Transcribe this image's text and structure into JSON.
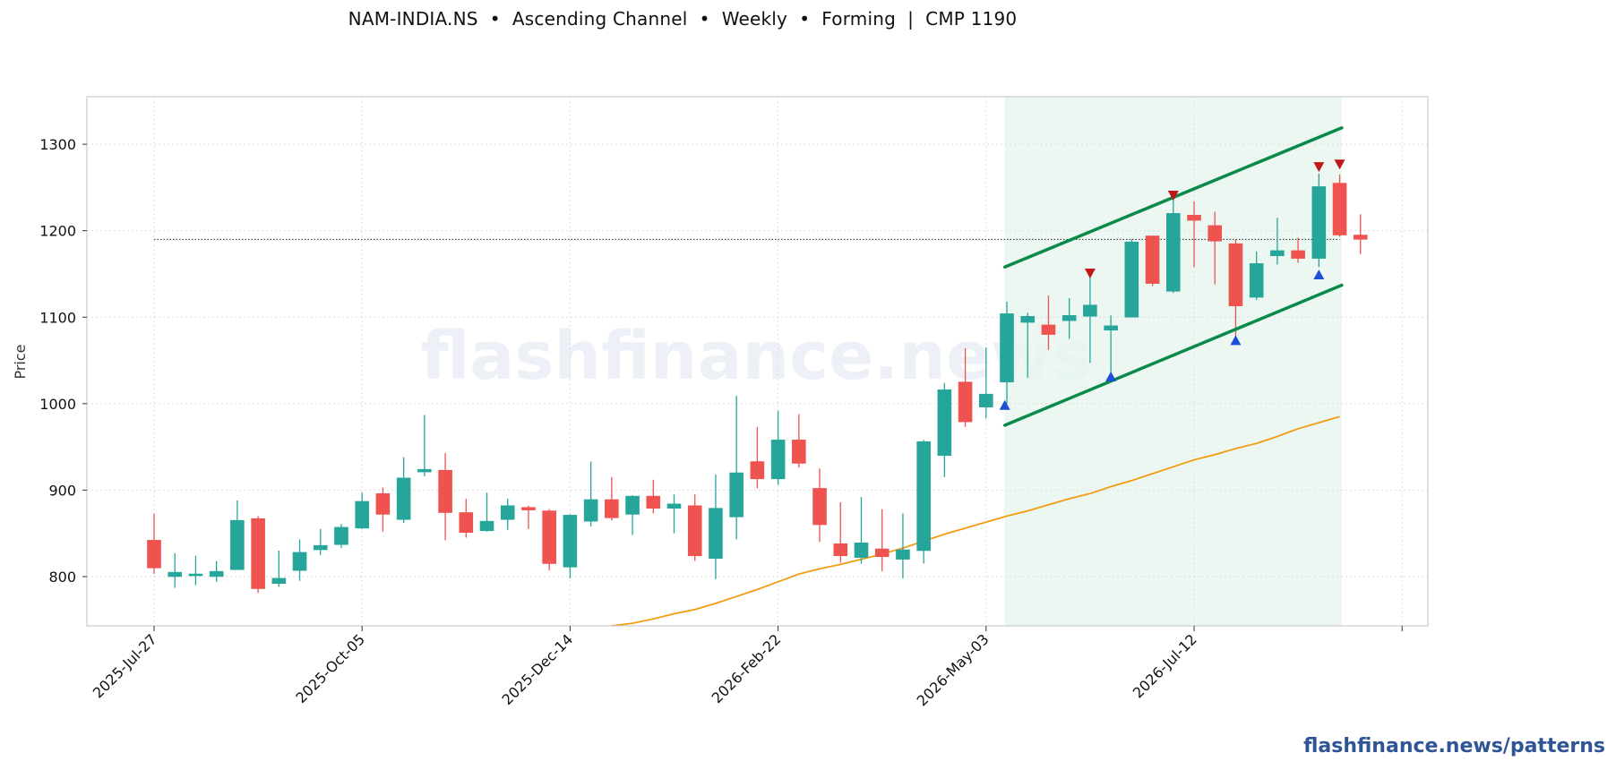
{
  "title": "NAM-INDIA.NS  •  Ascending Channel  •  Weekly  •  Forming  |  CMP 1190",
  "footer": "flashfinance.news/patterns",
  "watermark": "flashfinance.news",
  "colors": {
    "bullish": "#26a69a",
    "bearish": "#ef5350",
    "channel": "#0a8a4a",
    "ma": "#f39c12",
    "pattern_zone": "#e6f4ec",
    "peak_marker": "#c01818",
    "trough_marker": "#1f4fd8"
  },
  "chart_data": {
    "type": "candlestick",
    "ylabel": "Price",
    "ylim": [
      743,
      1355
    ],
    "yticks": [
      800,
      900,
      1000,
      1100,
      1200,
      1300
    ],
    "grid": true,
    "xtick_labels": [
      "2025-Jul-27",
      "2025-Oct-05",
      "2025-Dec-14",
      "2026-Feb-22",
      "2026-May-03",
      "2026-Jul-12"
    ],
    "xtick_index": [
      0,
      10,
      20,
      30,
      40,
      50
    ],
    "candles": [
      {
        "date": "2025-Jul-27",
        "o": 842,
        "h": 873,
        "l": 803,
        "c": 810
      },
      {
        "date": "2025-Aug-03",
        "o": 800,
        "h": 827,
        "l": 787,
        "c": 805
      },
      {
        "date": "2025-Aug-10",
        "o": 801,
        "h": 824,
        "l": 790,
        "c": 803
      },
      {
        "date": "2025-Aug-17",
        "o": 800,
        "h": 818,
        "l": 794,
        "c": 806
      },
      {
        "date": "2025-Aug-24",
        "o": 808,
        "h": 888,
        "l": 808,
        "c": 865
      },
      {
        "date": "2025-Aug-31",
        "o": 867,
        "h": 870,
        "l": 781,
        "c": 786
      },
      {
        "date": "2025-Sep-07",
        "o": 792,
        "h": 830,
        "l": 788,
        "c": 798
      },
      {
        "date": "2025-Sep-14",
        "o": 807,
        "h": 843,
        "l": 795,
        "c": 828
      },
      {
        "date": "2025-Sep-21",
        "o": 831,
        "h": 855,
        "l": 825,
        "c": 836
      },
      {
        "date": "2025-Sep-28",
        "o": 837,
        "h": 861,
        "l": 833,
        "c": 857
      },
      {
        "date": "2025-Oct-05",
        "o": 856,
        "h": 897,
        "l": 855,
        "c": 887
      },
      {
        "date": "2025-Oct-12",
        "o": 896,
        "h": 903,
        "l": 852,
        "c": 872
      },
      {
        "date": "2025-Oct-19",
        "o": 866,
        "h": 938,
        "l": 862,
        "c": 914
      },
      {
        "date": "2025-Oct-26",
        "o": 921,
        "h": 987,
        "l": 916,
        "c": 924
      },
      {
        "date": "2025-Nov-02",
        "o": 923,
        "h": 943,
        "l": 842,
        "c": 874
      },
      {
        "date": "2025-Nov-09",
        "o": 874,
        "h": 890,
        "l": 845,
        "c": 851
      },
      {
        "date": "2025-Nov-16",
        "o": 853,
        "h": 897,
        "l": 852,
        "c": 864
      },
      {
        "date": "2025-Nov-23",
        "o": 866,
        "h": 890,
        "l": 854,
        "c": 882
      },
      {
        "date": "2025-Nov-30",
        "o": 880,
        "h": 882,
        "l": 855,
        "c": 877
      },
      {
        "date": "2025-Dec-07",
        "o": 876,
        "h": 878,
        "l": 807,
        "c": 815
      },
      {
        "date": "2025-Dec-14",
        "o": 811,
        "h": 872,
        "l": 798,
        "c": 871
      },
      {
        "date": "2025-Dec-21",
        "o": 864,
        "h": 933,
        "l": 858,
        "c": 889
      },
      {
        "date": "2025-Dec-28",
        "o": 889,
        "h": 915,
        "l": 865,
        "c": 868
      },
      {
        "date": "2026-Jan-04",
        "o": 872,
        "h": 894,
        "l": 848,
        "c": 893
      },
      {
        "date": "2026-Jan-11",
        "o": 893,
        "h": 912,
        "l": 873,
        "c": 879
      },
      {
        "date": "2026-Jan-18",
        "o": 879,
        "h": 895,
        "l": 850,
        "c": 884
      },
      {
        "date": "2026-Jan-25",
        "o": 882,
        "h": 895,
        "l": 818,
        "c": 824
      },
      {
        "date": "2026-Feb-01",
        "o": 821,
        "h": 918,
        "l": 797,
        "c": 879
      },
      {
        "date": "2026-Feb-08",
        "o": 869,
        "h": 1009,
        "l": 843,
        "c": 920
      },
      {
        "date": "2026-Feb-15",
        "o": 933,
        "h": 973,
        "l": 902,
        "c": 913
      },
      {
        "date": "2026-Feb-22",
        "o": 913,
        "h": 992,
        "l": 906,
        "c": 958
      },
      {
        "date": "2026-Mar-01",
        "o": 958,
        "h": 988,
        "l": 926,
        "c": 931
      },
      {
        "date": "2026-Mar-08",
        "o": 902,
        "h": 925,
        "l": 840,
        "c": 860
      },
      {
        "date": "2026-Mar-15",
        "o": 838,
        "h": 886,
        "l": 816,
        "c": 824
      },
      {
        "date": "2026-Mar-22",
        "o": 822,
        "h": 892,
        "l": 815,
        "c": 839
      },
      {
        "date": "2026-Mar-29",
        "o": 832,
        "h": 878,
        "l": 806,
        "c": 823
      },
      {
        "date": "2026-Apr-05",
        "o": 820,
        "h": 873,
        "l": 798,
        "c": 831
      },
      {
        "date": "2026-Apr-12",
        "o": 830,
        "h": 958,
        "l": 815,
        "c": 956
      },
      {
        "date": "2026-Apr-19",
        "o": 940,
        "h": 1024,
        "l": 915,
        "c": 1016
      },
      {
        "date": "2026-Apr-26",
        "o": 1025,
        "h": 1064,
        "l": 973,
        "c": 979
      },
      {
        "date": "2026-May-03",
        "o": 996,
        "h": 1065,
        "l": 983,
        "c": 1011
      },
      {
        "date": "2026-May-10",
        "o": 1025,
        "h": 1118,
        "l": 1000,
        "c": 1104
      },
      {
        "date": "2026-May-17",
        "o": 1094,
        "h": 1105,
        "l": 1030,
        "c": 1101
      },
      {
        "date": "2026-May-24",
        "o": 1091,
        "h": 1125,
        "l": 1062,
        "c": 1080
      },
      {
        "date": "2026-May-31",
        "o": 1096,
        "h": 1122,
        "l": 1075,
        "c": 1102
      },
      {
        "date": "2026-Jun-07",
        "o": 1101,
        "h": 1148,
        "l": 1047,
        "c": 1114
      },
      {
        "date": "2026-Jun-14",
        "o": 1085,
        "h": 1102,
        "l": 1034,
        "c": 1090
      },
      {
        "date": "2026-Jun-21",
        "o": 1100,
        "h": 1190,
        "l": 1100,
        "c": 1187
      },
      {
        "date": "2026-Jun-28",
        "o": 1194,
        "h": 1194,
        "l": 1136,
        "c": 1139
      },
      {
        "date": "2026-Jul-05",
        "o": 1130,
        "h": 1236,
        "l": 1128,
        "c": 1220
      },
      {
        "date": "2026-Jul-12",
        "o": 1218,
        "h": 1234,
        "l": 1158,
        "c": 1212
      },
      {
        "date": "2026-Jul-19",
        "o": 1206,
        "h": 1222,
        "l": 1138,
        "c": 1188
      },
      {
        "date": "2026-Jul-26",
        "o": 1185,
        "h": 1190,
        "l": 1078,
        "c": 1113
      },
      {
        "date": "2026-Aug-02",
        "o": 1123,
        "h": 1176,
        "l": 1120,
        "c": 1162
      },
      {
        "date": "2026-Aug-09",
        "o": 1171,
        "h": 1215,
        "l": 1161,
        "c": 1177
      },
      {
        "date": "2026-Aug-16",
        "o": 1177,
        "h": 1192,
        "l": 1163,
        "c": 1168
      },
      {
        "date": "2026-Aug-23",
        "o": 1168,
        "h": 1266,
        "l": 1158,
        "c": 1251
      },
      {
        "date": "2026-Aug-30",
        "o": 1255,
        "h": 1265,
        "l": 1193,
        "c": 1195
      },
      {
        "date": "2026-Sep-06",
        "o": 1195,
        "h": 1219,
        "l": 1173,
        "c": 1190
      }
    ],
    "ma_line": [
      {
        "i": 22,
        "v": 743
      },
      {
        "i": 23,
        "v": 746
      },
      {
        "i": 24,
        "v": 751
      },
      {
        "i": 25,
        "v": 757
      },
      {
        "i": 26,
        "v": 762
      },
      {
        "i": 27,
        "v": 769
      },
      {
        "i": 28,
        "v": 777
      },
      {
        "i": 29,
        "v": 785
      },
      {
        "i": 30,
        "v": 794
      },
      {
        "i": 31,
        "v": 803
      },
      {
        "i": 32,
        "v": 809
      },
      {
        "i": 33,
        "v": 814
      },
      {
        "i": 34,
        "v": 820
      },
      {
        "i": 35,
        "v": 826
      },
      {
        "i": 36,
        "v": 833
      },
      {
        "i": 37,
        "v": 841
      },
      {
        "i": 38,
        "v": 849
      },
      {
        "i": 39,
        "v": 856
      },
      {
        "i": 40,
        "v": 863
      },
      {
        "i": 41,
        "v": 870
      },
      {
        "i": 42,
        "v": 876
      },
      {
        "i": 43,
        "v": 883
      },
      {
        "i": 44,
        "v": 890
      },
      {
        "i": 45,
        "v": 896
      },
      {
        "i": 46,
        "v": 904
      },
      {
        "i": 47,
        "v": 911
      },
      {
        "i": 48,
        "v": 919
      },
      {
        "i": 49,
        "v": 927
      },
      {
        "i": 50,
        "v": 935
      },
      {
        "i": 51,
        "v": 941
      },
      {
        "i": 52,
        "v": 948
      },
      {
        "i": 53,
        "v": 954
      },
      {
        "i": 54,
        "v": 962
      },
      {
        "i": 55,
        "v": 971
      },
      {
        "i": 56,
        "v": 978
      },
      {
        "i": 57,
        "v": 985
      }
    ],
    "cmp_line": {
      "value": 1190,
      "from_index": 0,
      "to_index": 57
    },
    "channel": {
      "upper": [
        {
          "i": 40.9,
          "v": 1158
        },
        {
          "i": 57.1,
          "v": 1319
        }
      ],
      "lower": [
        {
          "i": 40.9,
          "v": 975
        },
        {
          "i": 57.1,
          "v": 1137
        }
      ]
    },
    "pattern_zone": {
      "from_index": 40.9,
      "to_index": 57.1
    },
    "peaks": [
      {
        "i": 45,
        "v": 1150
      },
      {
        "i": 49,
        "v": 1240
      },
      {
        "i": 56,
        "v": 1273
      },
      {
        "i": 57,
        "v": 1276
      }
    ],
    "troughs": [
      {
        "i": 40.9,
        "v": 999
      },
      {
        "i": 46,
        "v": 1032
      },
      {
        "i": 52,
        "v": 1074
      },
      {
        "i": 56,
        "v": 1150
      }
    ]
  }
}
